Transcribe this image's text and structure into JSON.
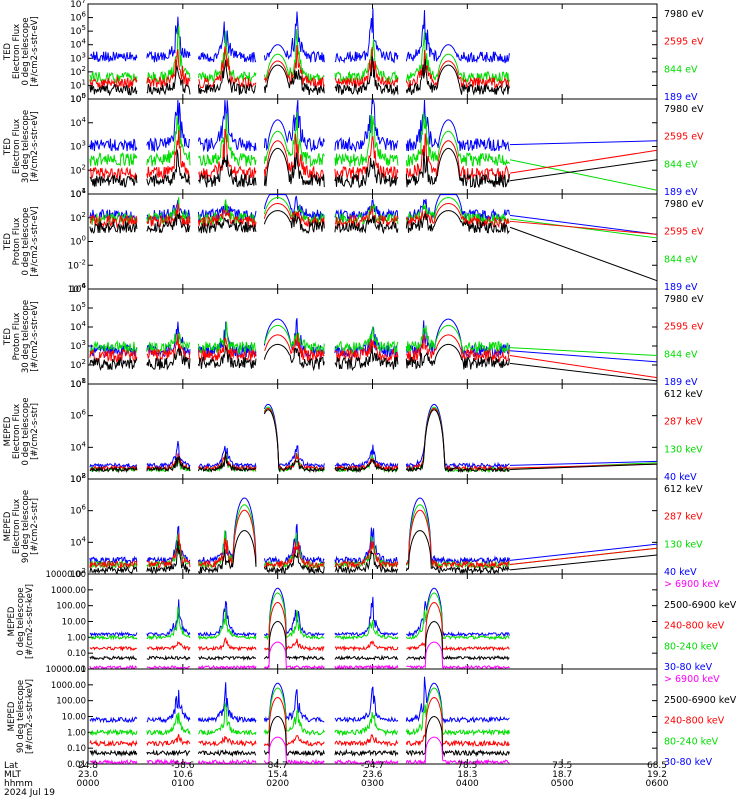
{
  "figure": {
    "footer": {
      "rows": [
        {
          "label": "Lat",
          "values": [
            "24.8",
            "-58.6",
            "84.7",
            "-54.7",
            "78.5",
            "73.5",
            "68.5"
          ]
        },
        {
          "label": "MLT",
          "values": [
            "23.0",
            "10.6",
            "15.4",
            "23.6",
            "18.3",
            "18.7",
            "19.2"
          ]
        },
        {
          "label": "hhmm",
          "values": [
            "0000",
            "0100",
            "0200",
            "0300",
            "0400",
            "0500",
            "0600"
          ]
        }
      ],
      "date": "2024 Jul 19"
    },
    "colors": {
      "black": "#000000",
      "red": "#ff0000",
      "green": "#00dd00",
      "blue": "#0000ff",
      "magenta": "#ff00ff"
    }
  },
  "chart_data": [
    {
      "type": "line",
      "ylabel": [
        "TED",
        "Electron Flux",
        "0 deg telescope",
        "[#/cm2-s-str-eV]"
      ],
      "yscale": "log",
      "ylim_exp": [
        0,
        7
      ],
      "ytick_labels": [
        "10^0",
        "10^1",
        "10^2",
        "10^3",
        "10^4",
        "10^5",
        "10^6",
        "10^7"
      ],
      "x_hours": [
        0,
        1,
        2,
        3,
        4,
        5,
        6
      ],
      "series": [
        {
          "name": "7980 eV",
          "color": "#000000"
        },
        {
          "name": "2595 eV",
          "color": "#ff0000"
        },
        {
          "name": "844 eV",
          "color": "#00dd00"
        },
        {
          "name": "189 eV",
          "color": "#0000ff"
        }
      ]
    },
    {
      "type": "line",
      "ylabel": [
        "TED",
        "Electron Flux",
        "30 deg telescope",
        "[#/cm2-s-str-eV]"
      ],
      "yscale": "log",
      "ylim_exp": [
        0,
        5
      ],
      "ytick_labels": [
        "10^1",
        "10^2",
        "10^3",
        "10^4",
        "10^5"
      ],
      "x_hours": [
        0,
        1,
        2,
        3,
        4,
        5,
        6
      ],
      "series": [
        {
          "name": "7980 eV",
          "color": "#000000"
        },
        {
          "name": "2595 eV",
          "color": "#ff0000"
        },
        {
          "name": "844 eV",
          "color": "#00dd00"
        },
        {
          "name": "189 eV",
          "color": "#0000ff"
        }
      ]
    },
    {
      "type": "line",
      "ylabel": [
        "TED",
        "Proton Flux",
        "0 deg telescope",
        "[#/cm2-s-str-eV]"
      ],
      "yscale": "log",
      "ylim_exp": [
        -4,
        4
      ],
      "ytick_labels": [
        "10^-4",
        "10^-2",
        "10^0",
        "10^2",
        "10^4"
      ],
      "x_hours": [
        0,
        1,
        2,
        3,
        4,
        5,
        6
      ],
      "series": [
        {
          "name": "7980 eV",
          "color": "#000000"
        },
        {
          "name": "2595 eV",
          "color": "#ff0000"
        },
        {
          "name": "844 eV",
          "color": "#00dd00"
        },
        {
          "name": "189 eV",
          "color": "#0000ff"
        }
      ]
    },
    {
      "type": "line",
      "ylabel": [
        "TED",
        "Proton Flux",
        "30 deg telescope",
        "[#/cm2-s-str-eV]"
      ],
      "yscale": "log",
      "ylim_exp": [
        0,
        6
      ],
      "ytick_labels": [
        "10^1",
        "10^2",
        "10^3",
        "10^4",
        "10^5",
        "10^6"
      ],
      "x_hours": [
        0,
        1,
        2,
        3,
        4,
        5,
        6
      ],
      "series": [
        {
          "name": "7980 eV",
          "color": "#000000"
        },
        {
          "name": "2595 eV",
          "color": "#ff0000"
        },
        {
          "name": "844 eV",
          "color": "#00dd00"
        },
        {
          "name": "189 eV",
          "color": "#0000ff"
        }
      ]
    },
    {
      "type": "line",
      "ylabel": [
        "MEPED",
        "Electron Flux",
        "0 deg telescope",
        "[#/cm2-s-str]"
      ],
      "yscale": "log",
      "ylim_exp": [
        1,
        8
      ],
      "ytick_labels": [
        "10^2",
        "10^4",
        "10^6",
        "10^8"
      ],
      "x_hours": [
        0,
        1,
        2,
        3,
        4,
        5,
        6
      ],
      "series": [
        {
          "name": "612 keV",
          "color": "#000000"
        },
        {
          "name": "287 keV",
          "color": "#ff0000"
        },
        {
          "name": "130 keV",
          "color": "#00dd00"
        },
        {
          "name": "40 keV",
          "color": "#0000ff"
        }
      ]
    },
    {
      "type": "line",
      "ylabel": [
        "MEPED",
        "Electron Flux",
        "90 deg telescope",
        "[#/cm2-s-str]"
      ],
      "yscale": "log",
      "ylim_exp": [
        1,
        8
      ],
      "ytick_labels": [
        "10^2",
        "10^4",
        "10^6",
        "10^8"
      ],
      "x_hours": [
        0,
        1,
        2,
        3,
        4,
        5,
        6
      ],
      "series": [
        {
          "name": "612 keV",
          "color": "#000000"
        },
        {
          "name": "287 keV",
          "color": "#ff0000"
        },
        {
          "name": "130 keV",
          "color": "#00dd00"
        },
        {
          "name": "40 keV",
          "color": "#0000ff"
        }
      ]
    },
    {
      "type": "line",
      "ylabel": [
        "MEPED",
        "0 deg telescope",
        "[#/cm2-s-str-keV]"
      ],
      "yscale": "log",
      "ylim_exp": [
        -2,
        4
      ],
      "ytick_labels": [
        "0.01",
        "0.10",
        "1.00",
        "10.00",
        "100.00",
        "1000.00",
        "10000.00"
      ],
      "x_hours": [
        0,
        1,
        2,
        3,
        4,
        5,
        6
      ],
      "series": [
        {
          "name": "> 6900 keV",
          "color": "#ff00ff"
        },
        {
          "name": "2500-6900 keV",
          "color": "#000000"
        },
        {
          "name": "240-800 keV",
          "color": "#ff0000"
        },
        {
          "name": "80-240 keV",
          "color": "#00dd00"
        },
        {
          "name": "30-80 keV",
          "color": "#0000ff"
        }
      ]
    },
    {
      "type": "line",
      "ylabel": [
        "MEPED",
        "90 deg telescope",
        "[#/cm2-s-str-keV]"
      ],
      "yscale": "log",
      "ylim_exp": [
        -2,
        4
      ],
      "ytick_labels": [
        "0.01",
        "0.10",
        "1.00",
        "10.00",
        "100.00",
        "1000.00",
        "10000.00"
      ],
      "x_hours": [
        0,
        1,
        2,
        3,
        4,
        5,
        6
      ],
      "series": [
        {
          "name": "> 6900 keV",
          "color": "#ff00ff"
        },
        {
          "name": "2500-6900 keV",
          "color": "#000000"
        },
        {
          "name": "240-800 keV",
          "color": "#ff0000"
        },
        {
          "name": "80-240 keV",
          "color": "#00dd00"
        },
        {
          "name": "30-80 keV",
          "color": "#0000ff"
        }
      ]
    }
  ]
}
